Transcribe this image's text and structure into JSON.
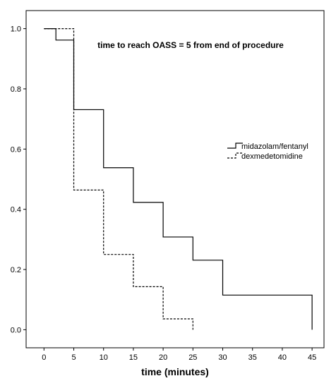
{
  "chart_data": {
    "type": "line",
    "step": true,
    "title": "time to reach OASS = 5 from end of procedure",
    "xlabel": "time (minutes)",
    "ylabel": "",
    "xlim": [
      -3,
      47
    ],
    "ylim": [
      -0.06,
      1.06
    ],
    "xticks": [
      0,
      5,
      10,
      15,
      20,
      25,
      30,
      35,
      40,
      45
    ],
    "yticks": [
      0.0,
      0.2,
      0.4,
      0.6,
      0.8,
      1.0
    ],
    "ytick_labels": [
      "0.0",
      "0.2",
      "0.4",
      "0.6",
      "0.8",
      "1.0"
    ],
    "grid": false,
    "legend_position": "right",
    "series": [
      {
        "name": "midazolam/fentanyl",
        "line_style": "solid",
        "color": "#000000",
        "x": [
          0,
          2,
          5,
          10,
          15,
          20,
          25,
          30,
          45
        ],
        "y": [
          1.0,
          0.962,
          0.731,
          0.538,
          0.423,
          0.308,
          0.231,
          0.115,
          0.0
        ]
      },
      {
        "name": "dexmedetomidine",
        "line_style": "dashed",
        "color": "#000000",
        "x": [
          0,
          5,
          10,
          15,
          20,
          25
        ],
        "y": [
          1.0,
          0.464,
          0.25,
          0.143,
          0.036,
          0.0
        ]
      }
    ]
  }
}
